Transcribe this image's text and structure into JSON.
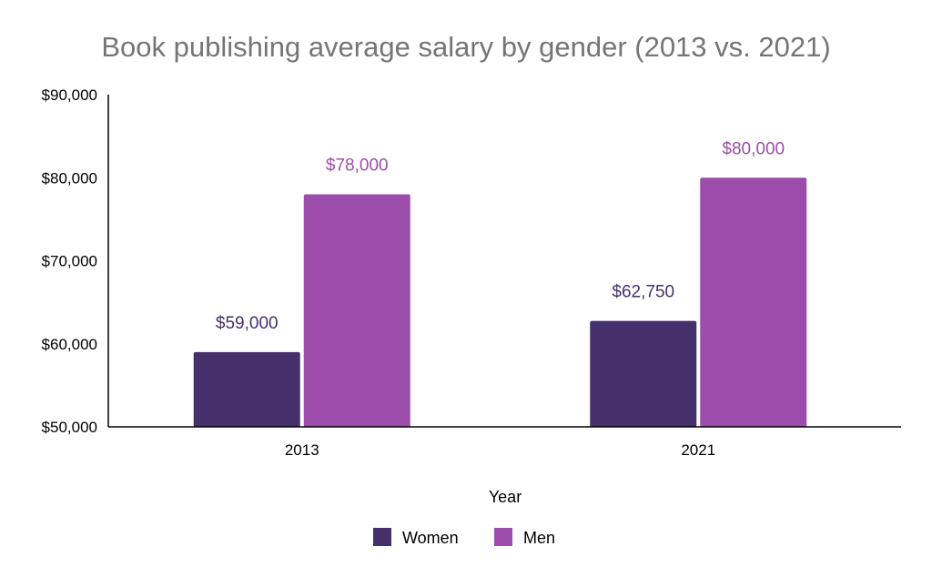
{
  "chart_data": {
    "type": "bar",
    "title": "Book publishing average salary by gender (2013 vs. 2021)",
    "xlabel": "Year",
    "ylabel": "",
    "categories": [
      "2013",
      "2021"
    ],
    "series": [
      {
        "name": "Women",
        "color": "#45306b",
        "values": [
          59000,
          62750
        ],
        "labels": [
          "$59,000",
          "$62,750"
        ]
      },
      {
        "name": "Men",
        "color": "#9c4dab",
        "values": [
          78000,
          80000
        ],
        "labels": [
          "$78,000",
          "$80,000"
        ]
      }
    ],
    "ylim": [
      50000,
      90000
    ],
    "yticks": [
      50000,
      60000,
      70000,
      80000,
      90000
    ],
    "ytick_labels": [
      "$50,000",
      "$60,000",
      "$70,000",
      "$80,000",
      "$90,000"
    ],
    "grid": false,
    "legend_position": "bottom"
  }
}
